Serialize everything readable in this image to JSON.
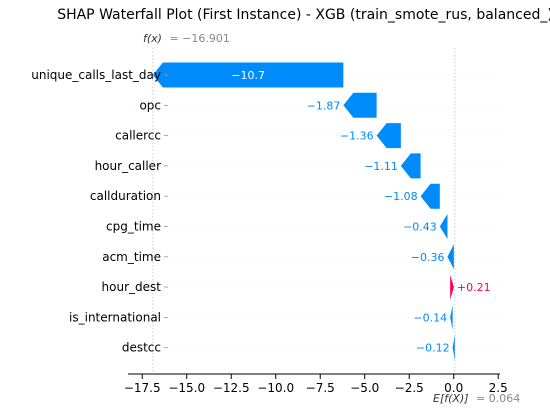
{
  "chart_data": {
    "type": "bar",
    "title": "SHAP Waterfall Plot (First Instance) - XGB (train_smote_rus, balanced_)",
    "fx_label": "f(x)",
    "fx_value": "= −16.901",
    "fx": -16.901,
    "ex_label": "E[f(X)]",
    "ex_value": "= 0.064",
    "ex": 0.064,
    "xlim": [
      -18.3,
      2.6
    ],
    "xticks": [
      -17.5,
      -15.0,
      -12.5,
      -10.0,
      -7.5,
      -5.0,
      -2.5,
      0.0,
      2.5
    ],
    "xtick_labels": [
      "−17.5",
      "−15.0",
      "−12.5",
      "−10.0",
      "−7.5",
      "−5.0",
      "−2.5",
      "0.0",
      "2.5"
    ],
    "categories": [
      "unique_calls_last_day",
      "opc",
      "callercc",
      "hour_caller",
      "callduration",
      "cpg_time",
      "acm_time",
      "hour_dest",
      "is_international",
      "destcc"
    ],
    "values": [
      -10.7,
      -1.87,
      -1.36,
      -1.11,
      -1.08,
      -0.43,
      -0.36,
      0.21,
      -0.14,
      -0.12
    ],
    "value_labels": [
      "−10.7",
      "−1.87",
      "−1.36",
      "−1.11",
      "−1.08",
      "−0.43",
      "−0.36",
      "+0.21",
      "−0.14",
      "−0.12"
    ],
    "colors": {
      "negative": "#008bfb",
      "positive": "#ff0051",
      "label_inside": "#ffffff"
    }
  }
}
